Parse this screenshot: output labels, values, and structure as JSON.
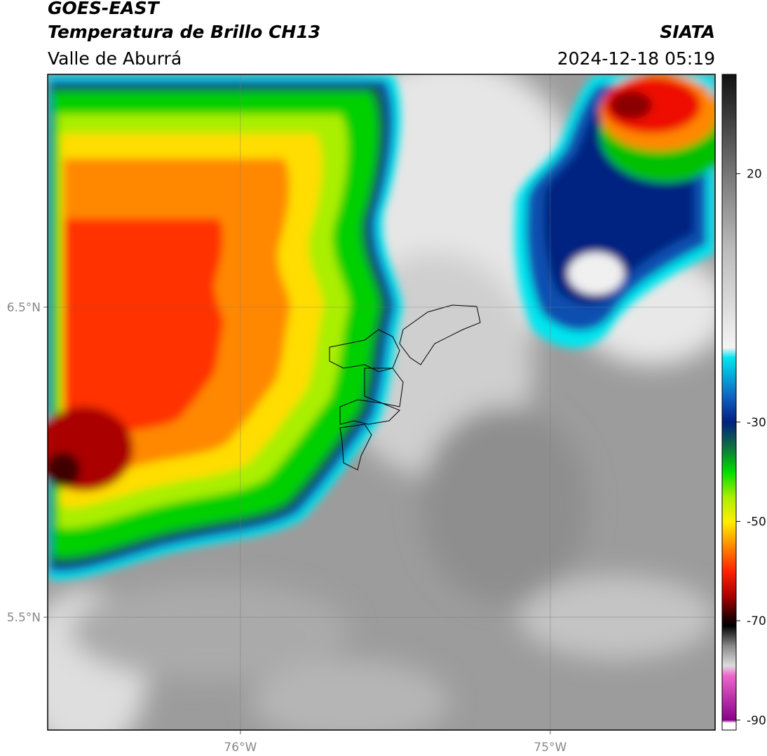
{
  "header": {
    "title": "GOES-EAST",
    "subtitle": "Temperatura de Brillo CH13",
    "region": "Valle de Aburrá",
    "source": "SIATA",
    "datetime": "2024-12-18 05:19"
  },
  "map": {
    "xlim": [
      -76.622,
      -74.468
    ],
    "ylim": [
      5.136,
      7.251
    ],
    "xticks": [
      {
        "value": -76,
        "label": "76°W"
      },
      {
        "value": -75,
        "label": "75°W"
      }
    ],
    "yticks": [
      {
        "value": 6.5,
        "label": "6.5°N"
      },
      {
        "value": 5.5,
        "label": "5.5°N"
      }
    ],
    "grid": true
  },
  "colorbar": {
    "range": [
      -92,
      40
    ],
    "ticks": [
      20,
      -30,
      -50,
      -70,
      -90
    ],
    "colormap": [
      {
        "value": 40,
        "color": "#111111"
      },
      {
        "value": 20,
        "color": "#777777"
      },
      {
        "value": 5,
        "color": "#bbbbbb"
      },
      {
        "value": -15,
        "color": "#f4f4f4"
      },
      {
        "value": -17,
        "color": "#00e5ee"
      },
      {
        "value": -25,
        "color": "#1060c0"
      },
      {
        "value": -30,
        "color": "#002080"
      },
      {
        "value": -35,
        "color": "#107040"
      },
      {
        "value": -40,
        "color": "#00dd00"
      },
      {
        "value": -45,
        "color": "#aaee00"
      },
      {
        "value": -50,
        "color": "#ffee00"
      },
      {
        "value": -55,
        "color": "#ff8800"
      },
      {
        "value": -60,
        "color": "#ff2200"
      },
      {
        "value": -65,
        "color": "#aa0000"
      },
      {
        "value": -69,
        "color": "#300000"
      },
      {
        "value": -71,
        "color": "#000000"
      },
      {
        "value": -75,
        "color": "#888888"
      },
      {
        "value": -79,
        "color": "#dddddd"
      },
      {
        "value": -81,
        "color": "#ee66cc"
      },
      {
        "value": -90,
        "color": "#880088"
      },
      {
        "value": -90.5,
        "color": "#ffffff"
      },
      {
        "value": -92,
        "color": "#ffffff"
      }
    ]
  }
}
